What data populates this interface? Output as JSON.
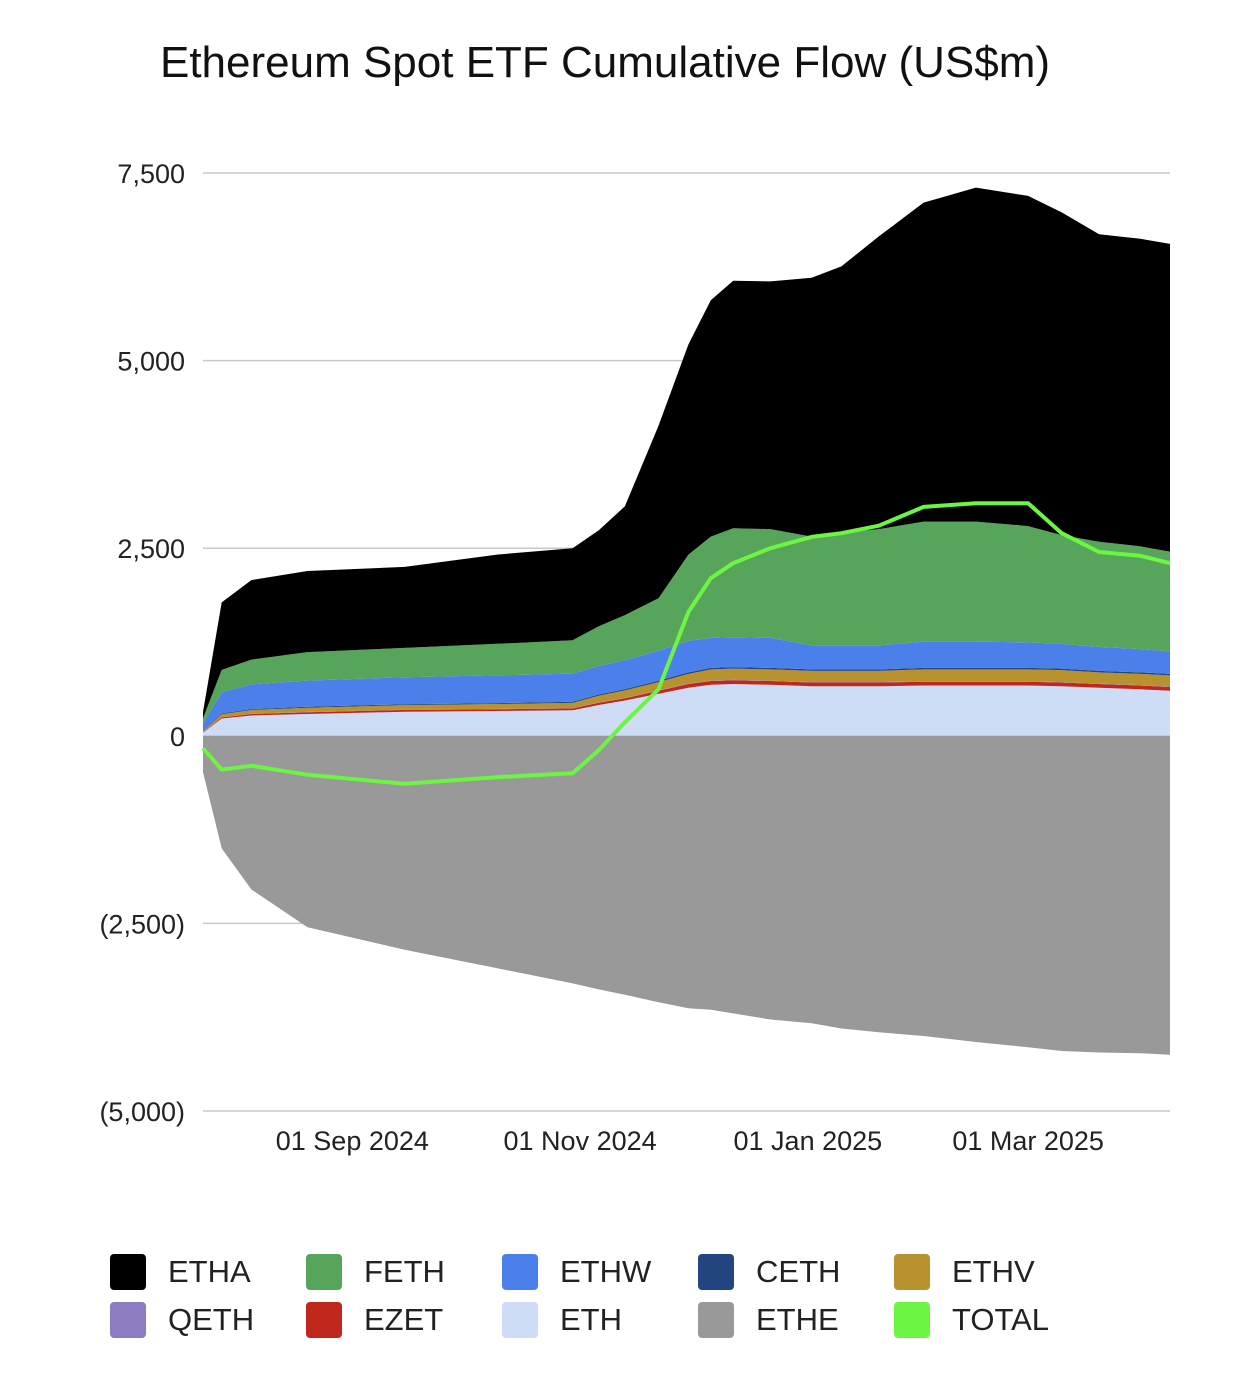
{
  "chart_data": {
    "type": "area",
    "title": "Ethereum Spot ETF Cumulative Flow (US$m)",
    "stacked": true,
    "y_ticks": [
      7500,
      5000,
      2500,
      0,
      -2500,
      -5000
    ],
    "y_tick_labels": [
      "7,500",
      "5,000",
      "2,500",
      "0",
      "(2,500)",
      "(5,000)"
    ],
    "ylim": [
      -5000,
      7500
    ],
    "x_ticks": [
      "2024-09-01",
      "2024-11-01",
      "2025-01-01",
      "2025-03-01"
    ],
    "x_tick_labels": [
      "01 Sep 2024",
      "01 Nov 2024",
      "01 Jan 2025",
      "01 Mar 2025"
    ],
    "xlim": [
      "2024-07-23",
      "2025-04-08"
    ],
    "grid": true,
    "legend_position": "bottom",
    "x": [
      "2024-07-23",
      "2024-07-28",
      "2024-08-05",
      "2024-08-20",
      "2024-09-15",
      "2024-10-10",
      "2024-10-30",
      "2024-11-06",
      "2024-11-13",
      "2024-11-22",
      "2024-11-30",
      "2024-12-06",
      "2024-12-12",
      "2024-12-22",
      "2025-01-02",
      "2025-01-10",
      "2025-01-20",
      "2025-02-01",
      "2025-02-15",
      "2025-03-01",
      "2025-03-10",
      "2025-03-20",
      "2025-03-31",
      "2025-04-08"
    ],
    "series": [
      {
        "name": "ETHA",
        "color": "#000000",
        "stack": "pos",
        "values": [
          86,
          900,
          1060,
          1080,
          1080,
          1190,
          1225,
          1280,
          1450,
          2300,
          2800,
          3150,
          3300,
          3300,
          3450,
          3550,
          3900,
          4250,
          4450,
          4400,
          4300,
          4100,
          4100,
          4100
        ]
      },
      {
        "name": "FETH",
        "color": "#57a55a",
        "stack": "pos",
        "values": [
          71,
          300,
          330,
          380,
          390,
          420,
          445,
          530,
          600,
          700,
          1150,
          1350,
          1450,
          1450,
          1450,
          1500,
          1550,
          1600,
          1600,
          1550,
          1450,
          1400,
          1370,
          1330
        ]
      },
      {
        "name": "ETHW",
        "color": "#4b80ea",
        "stack": "pos",
        "values": [
          100,
          280,
          330,
          350,
          360,
          370,
          375,
          380,
          385,
          400,
          420,
          400,
          400,
          400,
          320,
          320,
          320,
          350,
          350,
          340,
          330,
          320,
          310,
          300
        ]
      },
      {
        "name": "CETH",
        "color": "#23457f",
        "stack": "pos",
        "values": [
          5,
          10,
          12,
          12,
          12,
          12,
          15,
          15,
          18,
          18,
          20,
          20,
          20,
          20,
          20,
          20,
          20,
          20,
          20,
          20,
          20,
          20,
          20,
          20
        ]
      },
      {
        "name": "ETHV",
        "color": "#b8922e",
        "stack": "pos",
        "values": [
          10,
          40,
          50,
          55,
          60,
          65,
          70,
          90,
          100,
          110,
          130,
          150,
          150,
          150,
          150,
          150,
          150,
          160,
          160,
          160,
          160,
          150,
          150,
          150
        ]
      },
      {
        "name": "QETH",
        "color": "#8e7cc3",
        "stack": "pos",
        "values": [
          2,
          3,
          4,
          4,
          4,
          4,
          4,
          5,
          5,
          5,
          5,
          5,
          5,
          5,
          5,
          5,
          5,
          5,
          5,
          5,
          5,
          5,
          5,
          5
        ]
      },
      {
        "name": "EZET",
        "color": "#c0281e",
        "stack": "pos",
        "values": [
          5,
          15,
          20,
          25,
          25,
          25,
          25,
          30,
          30,
          40,
          50,
          50,
          50,
          50,
          50,
          50,
          50,
          50,
          50,
          50,
          50,
          50,
          50,
          50
        ]
      },
      {
        "name": "ETH",
        "color": "#cfdcf6",
        "stack": "pos",
        "values": [
          40,
          230,
          270,
          290,
          320,
          330,
          340,
          410,
          470,
          560,
          640,
          680,
          690,
          680,
          660,
          660,
          660,
          670,
          670,
          670,
          660,
          640,
          620,
          600
        ]
      },
      {
        "name": "ETHE",
        "color": "#999999",
        "stack": "neg",
        "values": [
          -484,
          -1500,
          -2050,
          -2550,
          -2850,
          -3100,
          -3300,
          -3380,
          -3450,
          -3550,
          -3630,
          -3650,
          -3700,
          -3780,
          -3830,
          -3900,
          -3950,
          -4000,
          -4080,
          -4150,
          -4200,
          -4220,
          -4230,
          -4250
        ]
      },
      {
        "name": "TOTAL",
        "color": "#6cf543",
        "type": "line",
        "values": [
          -165,
          -450,
          -400,
          -520,
          -640,
          -550,
          -500,
          -190,
          180,
          620,
          1650,
          2100,
          2300,
          2500,
          2650,
          2700,
          2800,
          3050,
          3100,
          3100,
          2700,
          2450,
          2400,
          2300
        ]
      }
    ]
  },
  "legend": {
    "items": [
      {
        "label": "ETHA",
        "color": "#000000"
      },
      {
        "label": "FETH",
        "color": "#57a55a"
      },
      {
        "label": "ETHW",
        "color": "#4b80ea"
      },
      {
        "label": "CETH",
        "color": "#23457f"
      },
      {
        "label": "ETHV",
        "color": "#b8922e"
      },
      {
        "label": "QETH",
        "color": "#8e7cc3"
      },
      {
        "label": "EZET",
        "color": "#c0281e"
      },
      {
        "label": "ETH",
        "color": "#cfdcf6"
      },
      {
        "label": "ETHE",
        "color": "#999999"
      },
      {
        "label": "TOTAL",
        "color": "#6cf543"
      }
    ]
  }
}
